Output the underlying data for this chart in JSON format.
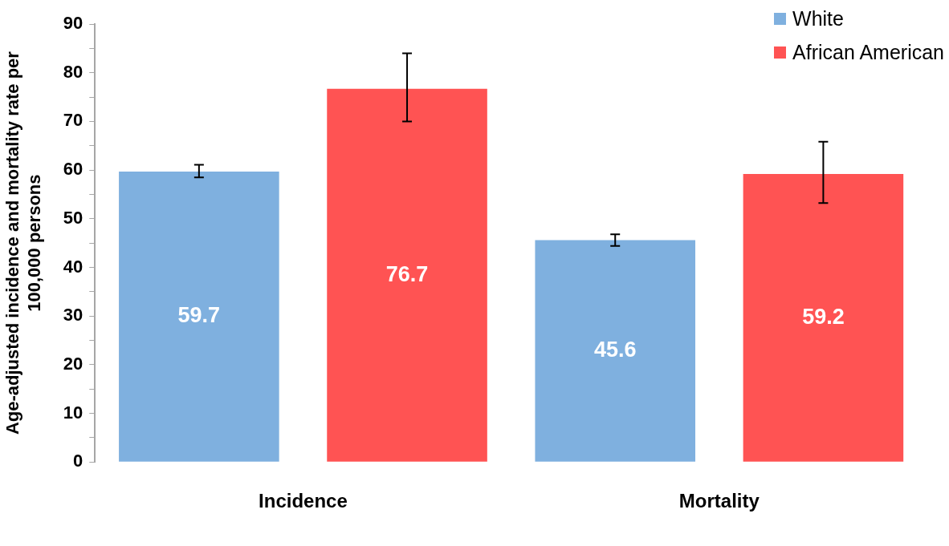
{
  "chart_data": {
    "type": "bar",
    "ylabel": "Age-adjusted incidence and mortality rate per 100,000 persons",
    "categories": [
      "Incidence",
      "Mortality"
    ],
    "series": [
      {
        "name": "White",
        "color": "#7fb0df",
        "values": [
          59.7,
          45.6
        ],
        "errors": [
          [
            58.5,
            61.1
          ],
          [
            44.4,
            46.8
          ]
        ]
      },
      {
        "name": "African American",
        "color": "#ff5353",
        "values": [
          76.7,
          59.2
        ],
        "errors": [
          [
            70.0,
            84.0
          ],
          [
            53.2,
            65.8
          ]
        ]
      }
    ],
    "ylim": [
      0,
      90
    ],
    "yticks": [
      0,
      {
        "value": 5,
        "label": null
      },
      10,
      {
        "value": 15,
        "label": null
      },
      20,
      {
        "value": 25,
        "label": null
      },
      30,
      {
        "value": 35,
        "label": null
      },
      40,
      {
        "value": 45,
        "label": null
      },
      50,
      {
        "value": 55,
        "label": null
      },
      60,
      {
        "value": 65,
        "label": null
      },
      70,
      {
        "value": 75,
        "label": null
      },
      80,
      {
        "value": 85,
        "label": null
      },
      90
    ],
    "grid": false,
    "data_labels": true,
    "legend": "top right"
  }
}
